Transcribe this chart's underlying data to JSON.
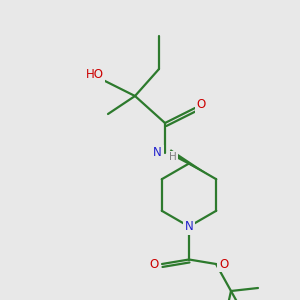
{
  "background_color": "#e8e8e8",
  "atom_colors": {
    "N": "#2222cc",
    "O": "#cc0000",
    "C": "#2d7a2d",
    "H_label": "#808080"
  },
  "bond_color": "#2d7a2d",
  "lw": 1.6,
  "fs": 8.5
}
